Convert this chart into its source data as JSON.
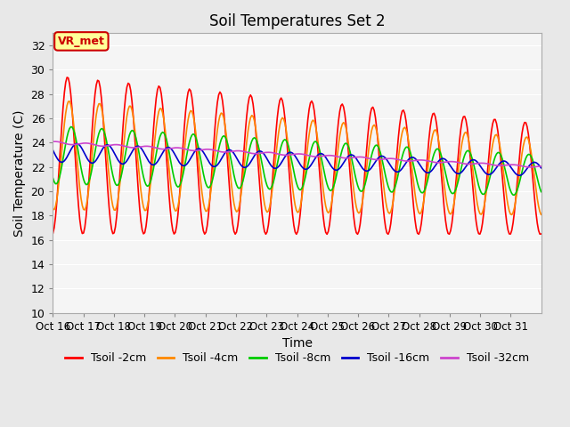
{
  "title": "Soil Temperatures Set 2",
  "xlabel": "Time",
  "ylabel": "Soil Temperature (C)",
  "ylim": [
    10,
    33
  ],
  "yticks": [
    10,
    12,
    14,
    16,
    18,
    20,
    22,
    24,
    26,
    28,
    30,
    32
  ],
  "x_labels": [
    "Oct 16",
    "Oct 17",
    "Oct 18",
    "Oct 19",
    "Oct 20",
    "Oct 21",
    "Oct 22",
    "Oct 23",
    "Oct 24",
    "Oct 25",
    "Oct 26",
    "Oct 27",
    "Oct 28",
    "Oct 29",
    "Oct 30",
    "Oct 31"
  ],
  "x_tick_positions": [
    0,
    1,
    2,
    3,
    4,
    5,
    6,
    7,
    8,
    9,
    10,
    11,
    12,
    13,
    14,
    15
  ],
  "annotation_text": "VR_met",
  "annotation_color": "#cc0000",
  "annotation_bg": "#ffff99",
  "background_color": "#e8e8e8",
  "plot_bg": "#f5f5f5",
  "grid_color": "#ffffff",
  "colors": {
    "Tsoil -2cm": "#ff0000",
    "Tsoil -4cm": "#ff8800",
    "Tsoil -8cm": "#00cc00",
    "Tsoil -16cm": "#0000cc",
    "Tsoil -32cm": "#cc44cc"
  },
  "figsize": [
    6.4,
    4.8
  ],
  "dpi": 100
}
